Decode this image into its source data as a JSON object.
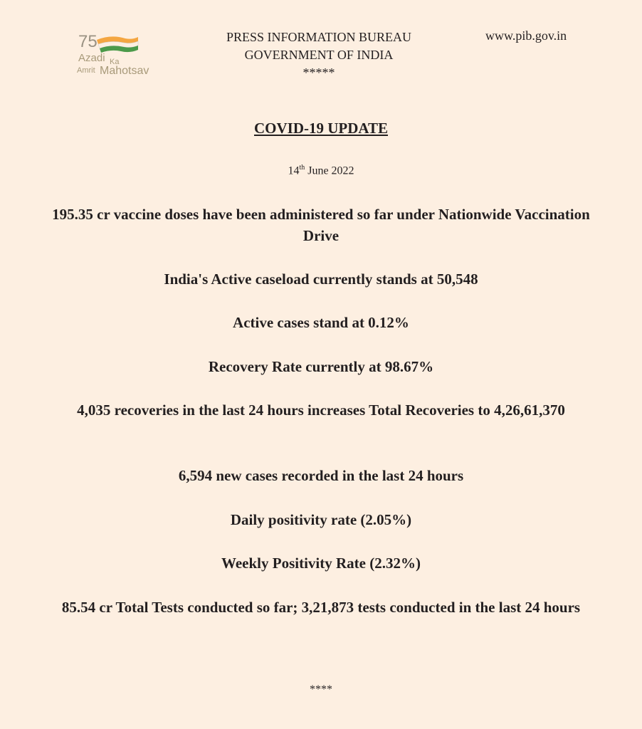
{
  "header": {
    "logo_text": "75 Azadi Ka Amrit Mahotsav",
    "org_line1": "PRESS INFORMATION BUREAU",
    "org_line2": "GOVERNMENT OF INDIA",
    "separator": "*****",
    "website": "www.pib.gov.in"
  },
  "title": "COVID-19 UPDATE",
  "date": {
    "day": "14",
    "suffix": "th",
    "rest": " June 2022"
  },
  "highlights": [
    "195.35 cr vaccine doses have been administered so far under Nationwide Vaccination Drive",
    "India's Active caseload currently stands at 50,548",
    "Active cases stand at 0.12%",
    "Recovery Rate currently at 98.67%",
    "4,035 recoveries in the last 24 hours increases Total Recoveries to 4,26,61,370",
    "6,594 new cases recorded in the last 24 hours",
    "Daily positivity rate (2.05%)",
    "Weekly Positivity Rate (2.32%)",
    "85.54 cr Total Tests conducted so far; 3,21,873 tests conducted in the last 24 hours"
  ],
  "footer_separator": "****"
}
